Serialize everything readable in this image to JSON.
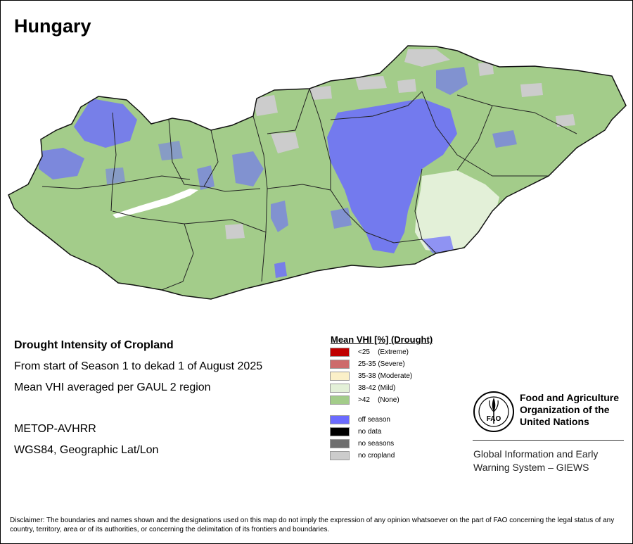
{
  "title": "Hungary",
  "info": {
    "line1": "Drought Intensity of Cropland",
    "line2": "From start of Season 1 to dekad 1 of August 2025",
    "line3": "Mean VHI averaged per GAUL 2 region",
    "line4": "METOP-AVHRR",
    "line5": "WGS84, Geographic Lat/Lon"
  },
  "legend": {
    "title": "Mean VHI [%] (Drought)",
    "items": [
      {
        "label": "<25    (Extreme)",
        "color": "#c00000"
      },
      {
        "label": "25-35 (Severe)",
        "color": "#cd6b6b"
      },
      {
        "label": "35-38 (Moderate)",
        "color": "#fbf0c8"
      },
      {
        "label": "38-42 (Mild)",
        "color": "#e3f0d8"
      },
      {
        "label": ">42    (None)",
        "color": "#a3cc8a"
      }
    ],
    "extra_items": [
      {
        "label": "off season",
        "color": "#6b6bff"
      },
      {
        "label": "no data",
        "color": "#000000"
      },
      {
        "label": "no seasons",
        "color": "#6e6e6e"
      },
      {
        "label": "no cropland",
        "color": "#cccccc"
      }
    ]
  },
  "map_colors": {
    "none": "#a3cc8a",
    "off_season": "#6b6bff",
    "mild": "#e3f0d8",
    "no_cropland": "#cccccc",
    "border": "#222222"
  },
  "logo": {
    "org_line1": "Food and Agriculture",
    "org_line2": "Organization of the",
    "org_line3": "United Nations",
    "system_line1": "Global Information and Early",
    "system_line2": "Warning System – GIEWS",
    "seal_text": "FAO"
  },
  "disclaimer": "Disclaimer: The boundaries and names shown and the designations used on this map do not imply the expression of any opinion whatsoever on the part of FAO concerning the legal status of any country, territory, area or of its authorities, or concerning the delimitation of its frontiers and boundaries."
}
